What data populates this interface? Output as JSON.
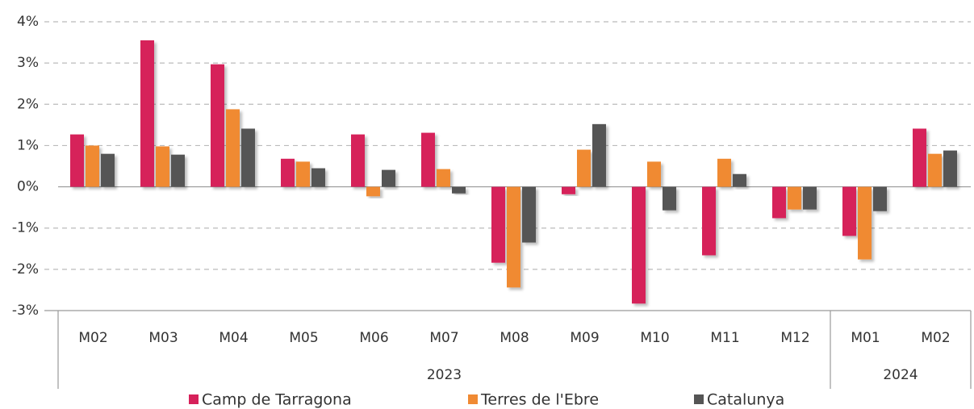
{
  "chart_data": {
    "type": "bar",
    "categories": [
      "M02",
      "M03",
      "M04",
      "M05",
      "M06",
      "M07",
      "M08",
      "M09",
      "M10",
      "M11",
      "M12",
      "M01",
      "M02"
    ],
    "groups": [
      {
        "label": "2023",
        "count": 11
      },
      {
        "label": "2024",
        "count": 2
      }
    ],
    "series": [
      {
        "name": "Camp de Tarragona",
        "color": "#d6215a",
        "values": [
          1.27,
          3.55,
          2.97,
          0.68,
          1.27,
          1.31,
          -1.84,
          -0.18,
          -2.83,
          -1.66,
          -0.76,
          -1.19,
          1.41
        ]
      },
      {
        "name": "Terres de l'Ebre",
        "color": "#f08a33",
        "values": [
          1.0,
          0.98,
          1.88,
          0.61,
          -0.23,
          0.43,
          -2.44,
          0.9,
          0.61,
          0.68,
          -0.55,
          -1.76,
          0.8
        ]
      },
      {
        "name": "Catalunya",
        "color": "#555555",
        "values": [
          0.8,
          0.78,
          1.41,
          0.45,
          0.41,
          -0.16,
          -1.35,
          1.52,
          -0.57,
          0.31,
          -0.55,
          -0.59,
          0.88
        ]
      }
    ],
    "ylim": [
      -3,
      4
    ],
    "yticks": [
      {
        "value": -3,
        "label": "-3%"
      },
      {
        "value": -2,
        "label": "-2%"
      },
      {
        "value": -1,
        "label": "-1%"
      },
      {
        "value": 0,
        "label": "0%"
      },
      {
        "value": 1,
        "label": "1%"
      },
      {
        "value": 2,
        "label": "2%"
      },
      {
        "value": 3,
        "label": "3%"
      },
      {
        "value": 4,
        "label": "4%"
      }
    ],
    "grid": true,
    "legend": "bottom"
  }
}
